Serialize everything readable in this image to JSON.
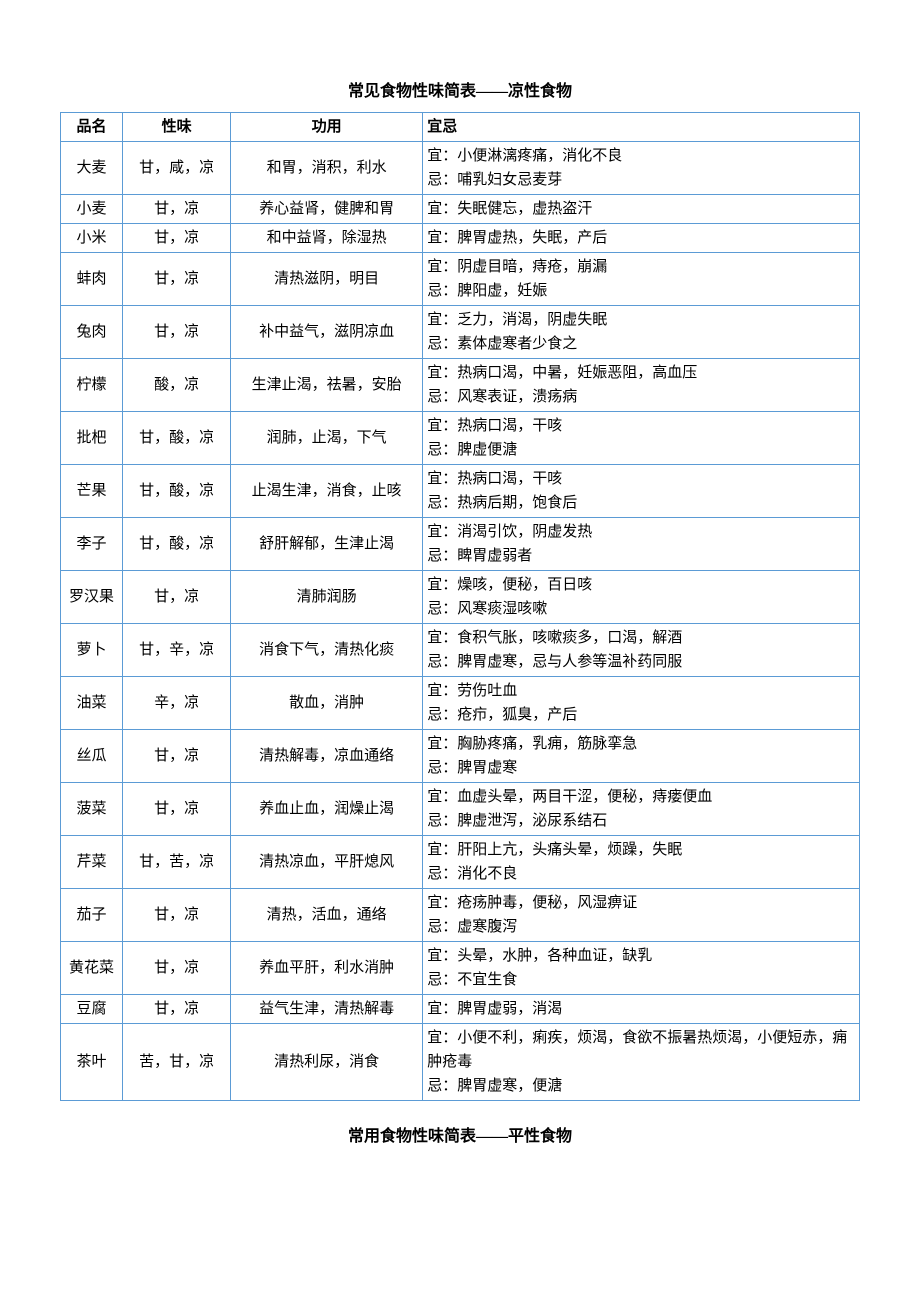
{
  "title1": "常见食物性味简表——凉性食物",
  "title2": "常用食物性味简表——平性食物",
  "table": {
    "border_color": "#5b9bd5",
    "background_color": "#ffffff",
    "text_color": "#000000",
    "font_family": "SimSun",
    "font_size_pt": 11,
    "title_font_size_pt": 12,
    "columns": [
      {
        "key": "name",
        "label": "品名",
        "width_pct": 7,
        "align": "center"
      },
      {
        "key": "taste",
        "label": "性味",
        "width_pct": 13,
        "align": "center"
      },
      {
        "key": "func",
        "label": "功用",
        "width_pct": 24,
        "align": "center"
      },
      {
        "key": "yi",
        "label": "宜忌",
        "width_pct": 56,
        "align": "left"
      }
    ],
    "rows": [
      {
        "name": "大麦",
        "taste": "甘，咸，凉",
        "func": "和胃，消积，利水",
        "yi": "宜：小便淋漓疼痛，消化不良\n忌：哺乳妇女忌麦芽"
      },
      {
        "name": "小麦",
        "taste": "甘，凉",
        "func": "养心益肾，健脾和胃",
        "yi": "宜：失眠健忘，虚热盗汗"
      },
      {
        "name": "小米",
        "taste": "甘，凉",
        "func": "和中益肾，除湿热",
        "yi": "宜：脾胃虚热，失眠，产后"
      },
      {
        "name": "蚌肉",
        "taste": "甘，凉",
        "func": "清热滋阴，明目",
        "yi": "宜：阴虚目暗，痔疮，崩漏\n忌：脾阳虚，妊娠"
      },
      {
        "name": "兔肉",
        "taste": "甘，凉",
        "func": "补中益气，滋阴凉血",
        "yi": "宜：乏力，消渴，阴虚失眠\n忌：素体虚寒者少食之"
      },
      {
        "name": "柠檬",
        "taste": "酸，凉",
        "func": "生津止渴，祛暑，安胎",
        "yi": "宜：热病口渴，中暑，妊娠恶阻，高血压\n忌：风寒表证，溃疡病"
      },
      {
        "name": "批杷",
        "taste": "甘，酸，凉",
        "func": "润肺，止渴，下气",
        "yi": "宜：热病口渴，干咳\n忌：脾虚便溏"
      },
      {
        "name": "芒果",
        "taste": "甘，酸，凉",
        "func": "止渴生津，消食，止咳",
        "yi": "宜：热病口渴，干咳\n忌：热病后期，饱食后"
      },
      {
        "name": "李子",
        "taste": "甘，酸，凉",
        "func": "舒肝解郁，生津止渴",
        "yi": "宜：消渴引饮，阴虚发热\n忌：睥胃虚弱者"
      },
      {
        "name": "罗汉果",
        "taste": "甘，凉",
        "func": "清肺润肠",
        "yi": "宜：燥咳，便秘，百日咳\n忌：风寒痰湿咳嗽"
      },
      {
        "name": "萝卜",
        "taste": "甘，辛，凉",
        "func": "消食下气，清热化痰",
        "yi": "宜：食积气胀，咳嗽痰多，口渴，解酒\n忌：脾胃虚寒，忌与人参等温补药同服"
      },
      {
        "name": "油菜",
        "taste": "辛，凉",
        "func": "散血，消肿",
        "yi": "宜：劳伤吐血\n忌：疮疖，狐臭，产后"
      },
      {
        "name": "丝瓜",
        "taste": "甘，凉",
        "func": "清热解毒，凉血通络",
        "yi": "宜：胸胁疼痛，乳痈，筋脉挛急\n忌：脾胃虚寒"
      },
      {
        "name": "菠菜",
        "taste": "甘，凉",
        "func": "养血止血，润燥止渴",
        "yi": "宜：血虚头晕，两目干涩，便秘，痔瘘便血\n忌：脾虚泄泻，泌尿系结石"
      },
      {
        "name": "芹菜",
        "taste": "甘，苦，凉",
        "func": "清热凉血，平肝熄风",
        "yi": "宜：肝阳上亢，头痛头晕，烦躁，失眠\n忌：消化不良"
      },
      {
        "name": "茄子",
        "taste": "甘，凉",
        "func": "清热，活血，通络",
        "yi": "宜：疮疡肿毒，便秘，风湿痹证\n忌：虚寒腹泻"
      },
      {
        "name": "黄花菜",
        "taste": "甘，凉",
        "func": "养血平肝，利水消肿",
        "yi": "宜：头晕，水肿，各种血证，缺乳\n忌：不宜生食"
      },
      {
        "name": "豆腐",
        "taste": "甘，凉",
        "func": "益气生津，清热解毒",
        "yi": "宜：脾胃虚弱，消渴"
      },
      {
        "name": "茶叶",
        "taste": "苦，甘，凉",
        "func": "清热利尿，消食",
        "yi": "宜：小便不利，痢疾，烦渴，食欲不振暑热烦渴，小便短赤，痈肿疮毒\n忌：脾胃虚寒，便溏"
      }
    ]
  }
}
